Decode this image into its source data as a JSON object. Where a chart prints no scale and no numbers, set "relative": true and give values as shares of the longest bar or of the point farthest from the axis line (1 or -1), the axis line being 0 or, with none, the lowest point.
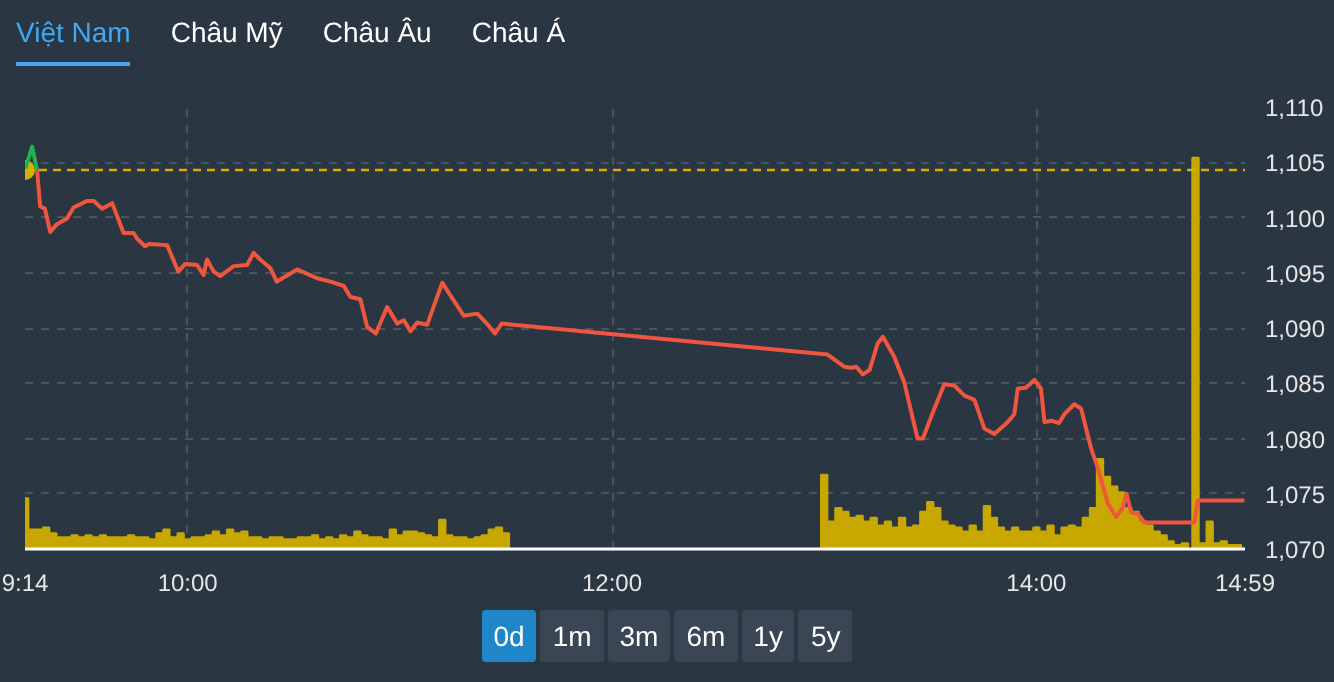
{
  "chart_data": [
    {
      "type": "line",
      "annotations": [
        "Việt Nam",
        "Châu Mỹ",
        "Châu Âu",
        "Châu Á",
        "0d",
        "1m",
        "3m",
        "6m",
        "1y",
        "5y"
      ],
      "xlim": [
        9.2333,
        14.9833
      ],
      "xticks": [
        {
          "value": 9.2333,
          "label": "9:14"
        },
        {
          "value": 10,
          "label": "10:00"
        },
        {
          "value": 12,
          "label": "12:00"
        },
        {
          "value": 14,
          "label": "14:00"
        },
        {
          "value": 14.9833,
          "label": "14:59"
        }
      ],
      "ylim": [
        1070,
        1110
      ],
      "yticks": [
        {
          "value": 1070,
          "label": "1,070"
        },
        {
          "value": 1075,
          "label": "1,075"
        },
        {
          "value": 1080,
          "label": "1,080"
        },
        {
          "value": 1085,
          "label": "1,085"
        },
        {
          "value": 1090,
          "label": "1,090"
        },
        {
          "value": 1095,
          "label": "1,095"
        },
        {
          "value": 1100,
          "label": "1,100"
        },
        {
          "value": 1105,
          "label": "1,105"
        },
        {
          "value": 1110,
          "label": "1,110"
        }
      ],
      "grid": true,
      "ref_lines": [
        {
          "axis": "y",
          "value": 1104.3,
          "color": "#d4b200",
          "line_style": "dashed"
        }
      ],
      "series": [
        {
          "color": "#22b14c",
          "x": [
            9.2333,
            9.267,
            9.29
          ],
          "values": [
            1104.3,
            1106.4,
            1104.3
          ]
        },
        {
          "color": "#f0553f",
          "x": [
            9.29,
            9.305,
            9.327,
            9.352,
            9.384,
            9.431,
            9.462,
            9.525,
            9.557,
            9.597,
            9.644,
            9.698,
            9.745,
            9.761,
            9.799,
            9.818,
            9.903,
            9.956,
            9.988,
            10.044,
            10.075,
            10.091,
            10.123,
            10.154,
            10.217,
            10.28,
            10.311,
            10.342,
            10.39,
            10.42,
            10.516,
            10.61,
            10.673,
            10.736,
            10.767,
            10.814,
            10.846,
            10.887,
            10.94,
            10.988,
            11.019,
            11.05,
            11.082,
            11.129,
            11.2,
            11.233,
            11.302,
            11.365,
            11.41,
            11.448,
            11.48,
            13.016,
            13.094,
            13.126,
            13.151,
            13.182,
            13.214,
            13.252,
            13.277,
            13.33,
            13.377,
            13.44,
            13.465,
            13.519,
            13.566,
            13.613,
            13.66,
            13.708,
            13.755,
            13.802,
            13.865,
            13.896,
            13.912,
            13.95,
            13.991,
            14.022,
            14.038,
            14.075,
            14.107,
            14.132,
            14.179,
            14.211,
            14.258,
            14.29,
            14.337,
            14.377,
            14.409,
            14.425,
            14.447,
            14.478,
            14.509,
            14.745,
            14.761,
            14.98
          ],
          "values": [
            1104.3,
            1101.0,
            1100.8,
            1098.7,
            1099.4,
            1099.9,
            1100.9,
            1101.5,
            1101.5,
            1100.8,
            1101.3,
            1098.6,
            1098.6,
            1098.1,
            1097.4,
            1097.6,
            1097.5,
            1095.1,
            1095.8,
            1095.7,
            1094.8,
            1096.2,
            1095.1,
            1094.7,
            1095.6,
            1095.7,
            1096.8,
            1096.2,
            1095.4,
            1094.2,
            1095.3,
            1094.5,
            1094.2,
            1093.8,
            1092.8,
            1092.6,
            1090.1,
            1089.5,
            1091.9,
            1090.4,
            1090.7,
            1089.7,
            1090.5,
            1090.3,
            1094.1,
            1093.1,
            1091.1,
            1091.3,
            1090.4,
            1089.5,
            1090.4,
            1087.6,
            1086.5,
            1086.4,
            1086.5,
            1085.8,
            1086.2,
            1088.6,
            1089.2,
            1087.4,
            1085.1,
            1080.0,
            1080.0,
            1082.7,
            1084.9,
            1084.8,
            1083.9,
            1083.5,
            1080.9,
            1080.4,
            1081.5,
            1082.2,
            1084.5,
            1084.6,
            1085.3,
            1084.5,
            1081.5,
            1081.6,
            1081.4,
            1082.2,
            1083.1,
            1082.7,
            1079.1,
            1077.3,
            1074.1,
            1072.9,
            1073.8,
            1075.0,
            1073.3,
            1073.2,
            1072.4,
            1072.4,
            1074.4,
            1074.4
          ]
        }
      ]
    },
    {
      "type": "bar",
      "relative": true,
      "color": "#c8a800",
      "xlim": [
        9.2333,
        14.9833
      ],
      "x": [
        9.234,
        9.267,
        9.3,
        9.333,
        9.367,
        9.4,
        9.433,
        9.467,
        9.5,
        9.533,
        9.567,
        9.6,
        9.633,
        9.667,
        9.7,
        9.733,
        9.767,
        9.8,
        9.833,
        9.867,
        9.9,
        9.933,
        9.967,
        10.0,
        10.033,
        10.067,
        10.1,
        10.133,
        10.167,
        10.2,
        10.233,
        10.267,
        10.3,
        10.333,
        10.367,
        10.4,
        10.433,
        10.467,
        10.5,
        10.533,
        10.567,
        10.6,
        10.633,
        10.667,
        10.7,
        10.733,
        10.767,
        10.8,
        10.833,
        10.867,
        10.9,
        10.933,
        10.967,
        11.0,
        11.033,
        11.067,
        11.1,
        11.133,
        11.167,
        11.2,
        11.233,
        11.267,
        11.3,
        11.333,
        11.367,
        11.4,
        11.433,
        11.467,
        11.5,
        13.0,
        13.033,
        13.067,
        13.1,
        13.133,
        13.167,
        13.2,
        13.233,
        13.267,
        13.3,
        13.333,
        13.367,
        13.4,
        13.433,
        13.467,
        13.5,
        13.533,
        13.567,
        13.6,
        13.633,
        13.667,
        13.7,
        13.733,
        13.767,
        13.8,
        13.833,
        13.867,
        13.9,
        13.933,
        13.967,
        14.0,
        14.033,
        14.067,
        14.1,
        14.133,
        14.167,
        14.2,
        14.233,
        14.267,
        14.3,
        14.333,
        14.367,
        14.4,
        14.433,
        14.467,
        14.5,
        14.533,
        14.567,
        14.6,
        14.633,
        14.667,
        14.7,
        14.75,
        14.783,
        14.817,
        14.85,
        14.883,
        14.917,
        14.95
      ],
      "values": [
        0.13,
        0.05,
        0.05,
        0.055,
        0.04,
        0.03,
        0.03,
        0.035,
        0.03,
        0.035,
        0.03,
        0.035,
        0.03,
        0.03,
        0.03,
        0.035,
        0.03,
        0.03,
        0.025,
        0.04,
        0.05,
        0.03,
        0.04,
        0.025,
        0.03,
        0.03,
        0.035,
        0.045,
        0.035,
        0.05,
        0.04,
        0.045,
        0.03,
        0.03,
        0.025,
        0.03,
        0.03,
        0.025,
        0.025,
        0.03,
        0.03,
        0.035,
        0.025,
        0.03,
        0.025,
        0.035,
        0.03,
        0.045,
        0.035,
        0.03,
        0.03,
        0.025,
        0.05,
        0.035,
        0.045,
        0.045,
        0.04,
        0.035,
        0.03,
        0.075,
        0.035,
        0.03,
        0.03,
        0.025,
        0.03,
        0.035,
        0.05,
        0.055,
        0.04,
        0.19,
        0.07,
        0.105,
        0.095,
        0.08,
        0.085,
        0.07,
        0.08,
        0.06,
        0.07,
        0.055,
        0.08,
        0.055,
        0.06,
        0.095,
        0.12,
        0.105,
        0.07,
        0.06,
        0.055,
        0.045,
        0.06,
        0.045,
        0.11,
        0.08,
        0.055,
        0.045,
        0.055,
        0.045,
        0.045,
        0.055,
        0.045,
        0.06,
        0.035,
        0.055,
        0.06,
        0.055,
        0.08,
        0.105,
        0.23,
        0.185,
        0.16,
        0.145,
        0.105,
        0.095,
        0.07,
        0.06,
        0.045,
        0.035,
        0.02,
        0.01,
        0.015,
        1,
        0.015,
        0.07,
        0.015,
        0.02,
        0.01,
        0.01
      ]
    }
  ]
}
